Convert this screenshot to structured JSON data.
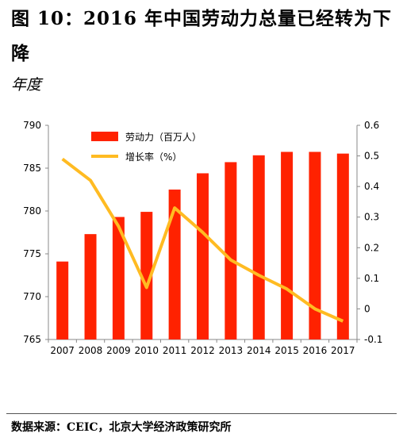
{
  "header": {
    "title": "图 10：2016 年中国劳动力总量已经转为下降",
    "subtitle": "年度"
  },
  "footer": {
    "source": "数据来源：CEIC，北京大学经济政策研究所"
  },
  "colors": {
    "bar": "#ff2200",
    "line": "#ffbb22"
  },
  "chart_data": {
    "type": "bar",
    "categories": [
      "2007",
      "2008",
      "2009",
      "2010",
      "2011",
      "2012",
      "2013",
      "2014",
      "2015",
      "2016",
      "2017"
    ],
    "series": [
      {
        "name": "劳动力（百万人）",
        "type": "bar",
        "axis": "left",
        "values": [
          774.1,
          777.3,
          779.3,
          779.9,
          782.5,
          784.4,
          785.7,
          786.5,
          786.9,
          786.9,
          786.7
        ]
      },
      {
        "name": "增长率（%）",
        "type": "line",
        "axis": "right",
        "values": [
          0.49,
          0.42,
          0.27,
          0.07,
          0.33,
          0.25,
          0.16,
          0.11,
          0.065,
          0.0,
          -0.04
        ]
      }
    ],
    "y_left": {
      "lim": [
        765,
        790
      ],
      "ticks": [
        "765",
        "770",
        "775",
        "780",
        "785",
        "790"
      ]
    },
    "y_right": {
      "lim": [
        -0.1,
        0.6
      ],
      "ticks": [
        "-0.1",
        "0",
        "0.1",
        "0.2",
        "0.3",
        "0.4",
        "0.5",
        "0.6"
      ]
    },
    "legend": "top-left",
    "grid": false
  }
}
